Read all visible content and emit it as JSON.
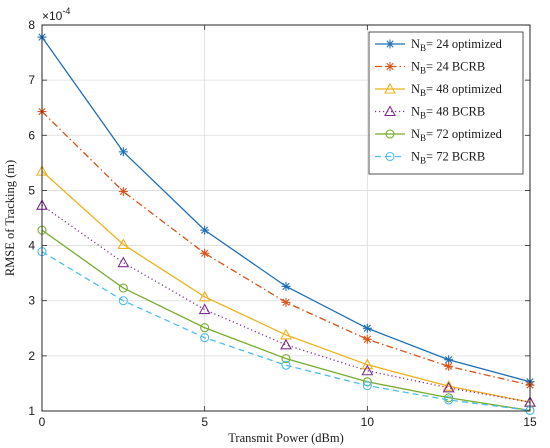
{
  "chart_data": {
    "type": "line",
    "xlabel": "Transmit Power (dBm)",
    "ylabel": "RMSE of Tracking (m)",
    "y_exponent_label": "×10",
    "y_exponent_power": "-4",
    "xlim": [
      0,
      15
    ],
    "ylim": [
      1,
      8
    ],
    "x_ticks": [
      0,
      5,
      10,
      15
    ],
    "y_ticks": [
      1,
      2,
      3,
      4,
      5,
      6,
      7,
      8
    ],
    "grid": true,
    "legend_position": "top-right",
    "x": [
      0,
      2.5,
      5,
      7.5,
      10,
      12.5,
      15
    ],
    "series": [
      {
        "legend_main": "N",
        "legend_sub": "B",
        "legend_rest": "= 24  optimized",
        "color": "#1f6fb5",
        "dash": "solid",
        "marker": "star",
        "values": [
          7.78,
          5.7,
          4.28,
          3.26,
          2.5,
          1.93,
          1.53
        ]
      },
      {
        "legend_main": "N",
        "legend_sub": "B",
        "legend_rest": "= 24  BCRB",
        "color": "#d9541a",
        "dash": "dashdot",
        "marker": "star",
        "values": [
          6.43,
          4.98,
          3.86,
          2.97,
          2.3,
          1.81,
          1.47
        ]
      },
      {
        "legend_main": "N",
        "legend_sub": "B",
        "legend_rest": "= 48  optimized",
        "color": "#eeb21e",
        "dash": "solid",
        "marker": "triangle",
        "values": [
          5.35,
          4.02,
          3.07,
          2.38,
          1.84,
          1.45,
          1.16
        ]
      },
      {
        "legend_main": "N",
        "legend_sub": "B",
        "legend_rest": "= 48  BCRB",
        "color": "#7e2f8e",
        "dash": "dotted",
        "marker": "triangle",
        "values": [
          4.73,
          3.69,
          2.84,
          2.2,
          1.73,
          1.42,
          1.16
        ]
      },
      {
        "legend_main": "N",
        "legend_sub": "B",
        "legend_rest": "= 72  optimized",
        "color": "#77ac30",
        "dash": "solid",
        "marker": "circle",
        "values": [
          4.28,
          3.23,
          2.51,
          1.95,
          1.53,
          1.24,
          1.01
        ]
      },
      {
        "legend_main": "N",
        "legend_sub": "B",
        "legend_rest": "= 72  BCRB",
        "color": "#4dbeee",
        "dash": "dashed",
        "marker": "circle",
        "values": [
          3.89,
          3.0,
          2.33,
          1.83,
          1.46,
          1.2,
          1.01
        ]
      }
    ]
  }
}
